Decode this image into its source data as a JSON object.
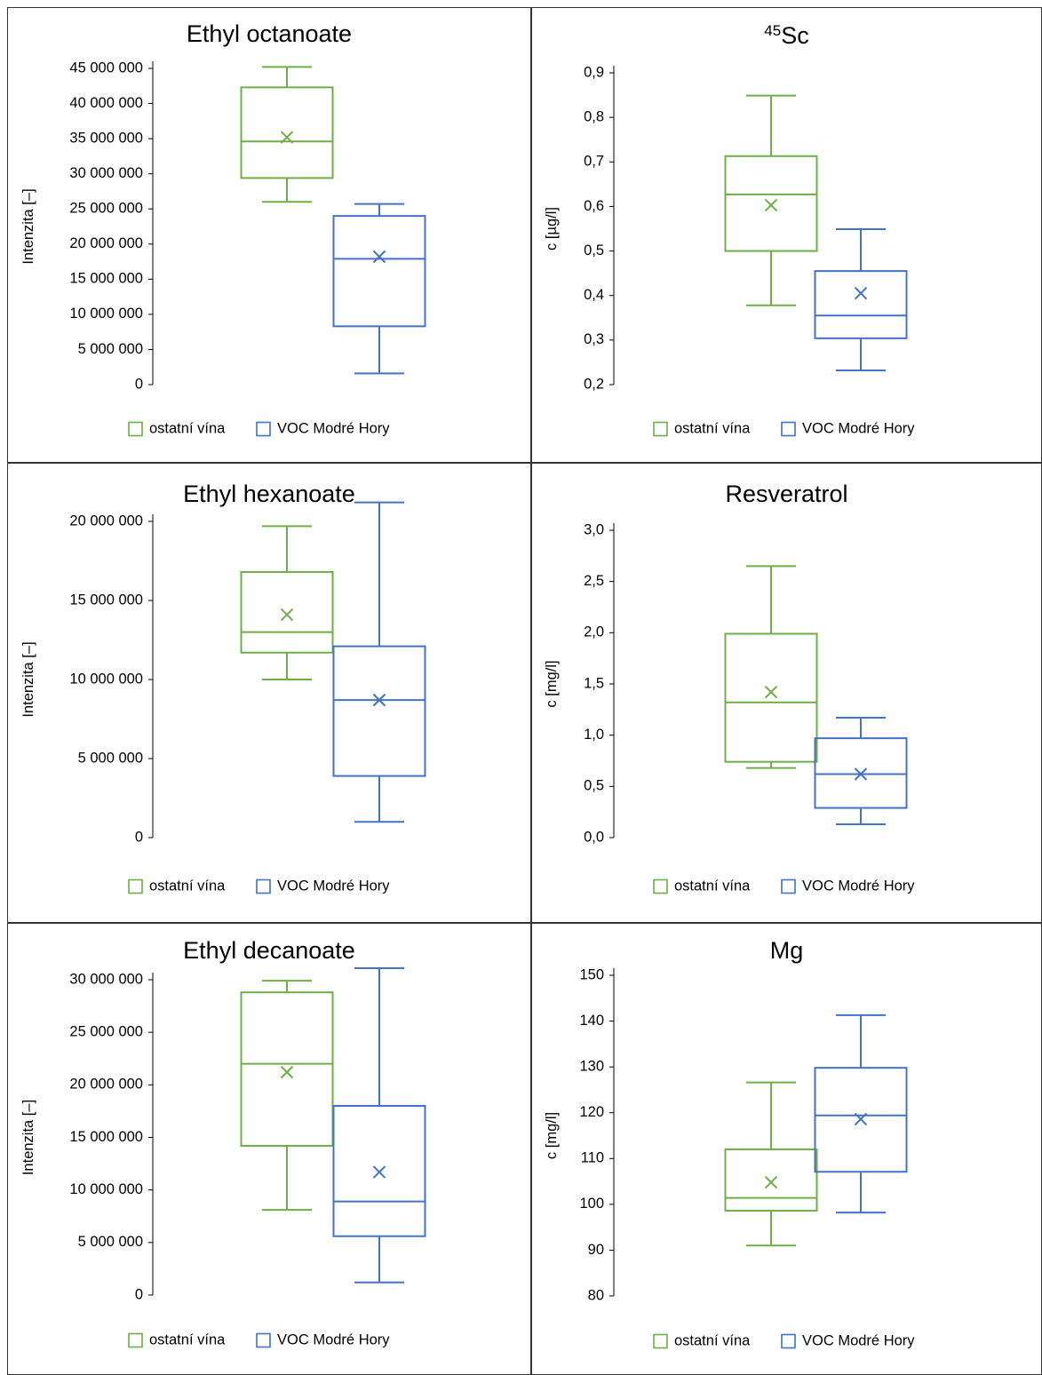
{
  "colors": {
    "green": "#70ad47",
    "blue": "#4472c4",
    "axis": "#000000"
  },
  "legend": [
    "ostatní vína",
    "VOC Modré Hory"
  ],
  "chart_data": [
    {
      "type": "boxplot",
      "title": "Ethyl octanoate",
      "title_sup": "",
      "ylabel": "Intenzita [–]",
      "ylim": [
        0,
        45000000
      ],
      "yticks": [
        0,
        5000000,
        10000000,
        15000000,
        20000000,
        25000000,
        30000000,
        35000000,
        40000000,
        45000000
      ],
      "tick_labels": [
        "0",
        "5 000 000",
        "10 000 000",
        "15 000 000",
        "20 000 000",
        "25 000 000",
        "30 000 000",
        "35 000 000",
        "40 000 000",
        "45 000 000"
      ],
      "series": [
        {
          "min": 26000000,
          "q1": 29400000,
          "median": 34600000,
          "q3": 42300000,
          "max": 45200000,
          "mean": 35200000
        },
        {
          "min": 1600000,
          "q1": 8300000,
          "median": 17900000,
          "q3": 24000000,
          "max": 25700000,
          "mean": 18200000
        }
      ]
    },
    {
      "type": "boxplot",
      "title": "Sc",
      "title_sup": "45",
      "ylabel": "c [µg/l]",
      "ylim": [
        0.2,
        0.9
      ],
      "yticks": [
        0.2,
        0.3,
        0.4,
        0.5,
        0.6,
        0.7,
        0.8,
        0.9
      ],
      "tick_labels": [
        "0,2",
        "0,3",
        "0,4",
        "0,5",
        "0,6",
        "0,7",
        "0,8",
        "0,9"
      ],
      "series": [
        {
          "min": 0.378,
          "q1": 0.5,
          "median": 0.627,
          "q3": 0.713,
          "max": 0.849,
          "mean": 0.603
        },
        {
          "min": 0.232,
          "q1": 0.304,
          "median": 0.355,
          "q3": 0.455,
          "max": 0.549,
          "mean": 0.405
        }
      ]
    },
    {
      "type": "boxplot",
      "title": "Ethyl hexanoate",
      "title_sup": "",
      "ylabel": "Intenzita [–]",
      "ylim": [
        0,
        20000000
      ],
      "yticks": [
        0,
        5000000,
        10000000,
        15000000,
        20000000
      ],
      "tick_labels": [
        "0",
        "5 000 000",
        "10 000 000",
        "15 000 000",
        "20 000 000"
      ],
      "series": [
        {
          "min": 10000000,
          "q1": 11700000,
          "median": 13000000,
          "q3": 16800000,
          "max": 19700000,
          "mean": 14100000
        },
        {
          "min": 1000000,
          "q1": 3900000,
          "median": 8700000,
          "q3": 12100000,
          "max": 21200000,
          "mean": 8700000
        }
      ]
    },
    {
      "type": "boxplot",
      "title": "Resveratrol",
      "title_sup": "",
      "ylabel": "c [mg/l]",
      "ylim": [
        0,
        3
      ],
      "yticks": [
        0,
        0.5,
        1,
        1.5,
        2,
        2.5,
        3
      ],
      "tick_labels": [
        "0,0",
        "0,5",
        "1,0",
        "1,5",
        "2,0",
        "2,5",
        "3,0"
      ],
      "series": [
        {
          "min": 0.68,
          "q1": 0.74,
          "median": 1.32,
          "q3": 1.99,
          "max": 2.65,
          "mean": 1.42
        },
        {
          "min": 0.13,
          "q1": 0.29,
          "median": 0.62,
          "q3": 0.97,
          "max": 1.17,
          "mean": 0.62
        }
      ]
    },
    {
      "type": "boxplot",
      "title": "Ethyl decanoate",
      "title_sup": "",
      "ylabel": "Intenzita [–]",
      "ylim": [
        0,
        30000000
      ],
      "yticks": [
        0,
        5000000,
        10000000,
        15000000,
        20000000,
        25000000,
        30000000
      ],
      "tick_labels": [
        "0",
        "5 000 000",
        "10 000 000",
        "15 000 000",
        "20 000 000",
        "25 000 000",
        "30 000 000"
      ],
      "series": [
        {
          "min": 8100000,
          "q1": 14200000,
          "median": 22000000,
          "q3": 28800000,
          "max": 29900000,
          "mean": 21200000
        },
        {
          "min": 1200000,
          "q1": 5600000,
          "median": 8900000,
          "q3": 18000000,
          "max": 31100000,
          "mean": 11700000
        }
      ]
    },
    {
      "type": "boxplot",
      "title": "Mg",
      "title_sup": "",
      "ylabel": "c [mg/l]",
      "ylim": [
        80,
        150
      ],
      "yticks": [
        80,
        90,
        100,
        110,
        120,
        130,
        140,
        150
      ],
      "tick_labels": [
        "80",
        "90",
        "100",
        "110",
        "120",
        "130",
        "140",
        "150"
      ],
      "series": [
        {
          "min": 91,
          "q1": 98.6,
          "median": 101.4,
          "q3": 112,
          "max": 126.6,
          "mean": 104.8
        },
        {
          "min": 98.2,
          "q1": 107.1,
          "median": 119.4,
          "q3": 129.8,
          "max": 141.3,
          "mean": 118.6
        }
      ]
    }
  ]
}
